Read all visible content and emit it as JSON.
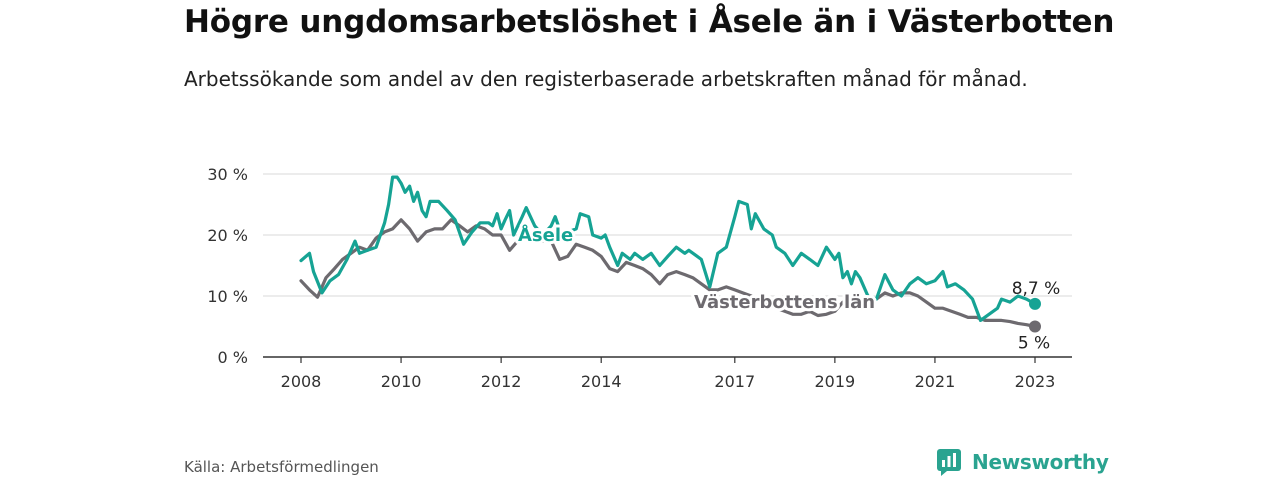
{
  "title": "Högre ungdomsarbetslöshet i Åsele än i Västerbotten",
  "subtitle": "Arbetssökande som andel av den registerbaserade arbetskraften månad för månad.",
  "source": "Källa: Arbetsförmedlingen",
  "brand": {
    "name": "Newsworthy",
    "icon": "newsworthy-logo-icon",
    "color": "#2aa390"
  },
  "chart_data": {
    "type": "line",
    "y_ticks": [
      "0 %",
      "10 %",
      "20 %",
      "30 %"
    ],
    "y_tick_values": [
      0,
      10,
      20,
      30
    ],
    "ylim": [
      0,
      30
    ],
    "x_ticks": [
      "2008",
      "2010",
      "2012",
      "2014",
      "2017",
      "2019",
      "2021",
      "2023"
    ],
    "x_tick_values": [
      2008.0,
      2010.0,
      2012.0,
      2014.0,
      2016.67,
      2018.67,
      2020.67,
      2022.67
    ],
    "grid": true,
    "series": [
      {
        "name": "Åsele",
        "color": "#16a394",
        "end_label": "8,7 %",
        "points": [
          [
            2008.0,
            15.8
          ],
          [
            2008.17,
            17.0
          ],
          [
            2008.25,
            14.0
          ],
          [
            2008.42,
            10.5
          ],
          [
            2008.58,
            12.5
          ],
          [
            2008.75,
            13.5
          ],
          [
            2008.92,
            16.0
          ],
          [
            2009.08,
            19.0
          ],
          [
            2009.17,
            17.0
          ],
          [
            2009.33,
            17.5
          ],
          [
            2009.5,
            18.0
          ],
          [
            2009.67,
            22.0
          ],
          [
            2009.75,
            25.0
          ],
          [
            2009.83,
            29.5
          ],
          [
            2009.92,
            29.5
          ],
          [
            2010.0,
            28.5
          ],
          [
            2010.08,
            27.0
          ],
          [
            2010.17,
            28.0
          ],
          [
            2010.25,
            25.5
          ],
          [
            2010.33,
            27.0
          ],
          [
            2010.42,
            24.0
          ],
          [
            2010.5,
            23.0
          ],
          [
            2010.58,
            25.5
          ],
          [
            2010.75,
            25.5
          ],
          [
            2010.92,
            24.0
          ],
          [
            2011.08,
            22.5
          ],
          [
            2011.25,
            18.5
          ],
          [
            2011.42,
            20.5
          ],
          [
            2011.58,
            22.0
          ],
          [
            2011.75,
            22.0
          ],
          [
            2011.83,
            21.5
          ],
          [
            2011.92,
            23.5
          ],
          [
            2012.0,
            21.0
          ],
          [
            2012.08,
            22.5
          ],
          [
            2012.17,
            24.0
          ],
          [
            2012.25,
            20.0
          ],
          [
            2012.42,
            23.0
          ],
          [
            2012.5,
            24.5
          ],
          [
            2012.67,
            21.5
          ],
          [
            2012.83,
            20.0
          ],
          [
            2013.0,
            21.5
          ],
          [
            2013.08,
            23.0
          ],
          [
            2013.25,
            19.0
          ],
          [
            2013.33,
            20.5
          ],
          [
            2013.5,
            21.0
          ],
          [
            2013.58,
            23.5
          ],
          [
            2013.75,
            23.0
          ],
          [
            2013.83,
            20.0
          ],
          [
            2014.0,
            19.5
          ],
          [
            2014.08,
            20.0
          ],
          [
            2014.17,
            18.0
          ],
          [
            2014.33,
            15.0
          ],
          [
            2014.42,
            17.0
          ],
          [
            2014.58,
            16.0
          ],
          [
            2014.67,
            17.0
          ],
          [
            2014.83,
            16.0
          ],
          [
            2015.0,
            17.0
          ],
          [
            2015.17,
            15.0
          ],
          [
            2015.33,
            16.5
          ],
          [
            2015.5,
            18.0
          ],
          [
            2015.67,
            17.0
          ],
          [
            2015.75,
            17.5
          ],
          [
            2015.92,
            16.5
          ],
          [
            2016.0,
            16.0
          ],
          [
            2016.17,
            11.5
          ],
          [
            2016.33,
            17.0
          ],
          [
            2016.5,
            18.0
          ],
          [
            2016.67,
            23.0
          ],
          [
            2016.75,
            25.5
          ],
          [
            2016.92,
            25.0
          ],
          [
            2017.0,
            21.0
          ],
          [
            2017.08,
            23.5
          ],
          [
            2017.25,
            21.0
          ],
          [
            2017.42,
            20.0
          ],
          [
            2017.5,
            18.0
          ],
          [
            2017.67,
            17.0
          ],
          [
            2017.83,
            15.0
          ],
          [
            2018.0,
            17.0
          ],
          [
            2018.17,
            16.0
          ],
          [
            2018.33,
            15.0
          ],
          [
            2018.5,
            18.0
          ],
          [
            2018.67,
            16.0
          ],
          [
            2018.75,
            17.0
          ],
          [
            2018.83,
            13.0
          ],
          [
            2018.92,
            14.0
          ],
          [
            2019.0,
            12.0
          ],
          [
            2019.08,
            14.0
          ],
          [
            2019.17,
            13.0
          ],
          [
            2019.33,
            10.0
          ],
          [
            2019.5,
            9.5
          ],
          [
            2019.67,
            13.5
          ],
          [
            2019.83,
            11.0
          ],
          [
            2020.0,
            10.0
          ],
          [
            2020.17,
            12.0
          ],
          [
            2020.33,
            13.0
          ],
          [
            2020.5,
            12.0
          ],
          [
            2020.67,
            12.5
          ],
          [
            2020.83,
            14.0
          ],
          [
            2020.92,
            11.5
          ],
          [
            2021.08,
            12.0
          ],
          [
            2021.25,
            11.0
          ],
          [
            2021.42,
            9.5
          ],
          [
            2021.58,
            6.0
          ],
          [
            2021.75,
            7.0
          ],
          [
            2021.92,
            8.0
          ],
          [
            2022.0,
            9.5
          ],
          [
            2022.17,
            9.0
          ],
          [
            2022.33,
            10.0
          ],
          [
            2022.5,
            9.5
          ],
          [
            2022.67,
            8.7
          ]
        ]
      },
      {
        "name": "Västerbottens län",
        "color": "#6d6a6f",
        "end_label": "5 %",
        "points": [
          [
            2008.0,
            12.5
          ],
          [
            2008.17,
            11.0
          ],
          [
            2008.33,
            9.8
          ],
          [
            2008.5,
            13.0
          ],
          [
            2008.67,
            14.5
          ],
          [
            2008.83,
            16.0
          ],
          [
            2009.0,
            17.0
          ],
          [
            2009.17,
            18.0
          ],
          [
            2009.33,
            17.5
          ],
          [
            2009.5,
            19.5
          ],
          [
            2009.67,
            20.5
          ],
          [
            2009.83,
            21.0
          ],
          [
            2010.0,
            22.5
          ],
          [
            2010.17,
            21.0
          ],
          [
            2010.33,
            19.0
          ],
          [
            2010.5,
            20.5
          ],
          [
            2010.67,
            21.0
          ],
          [
            2010.83,
            21.0
          ],
          [
            2011.0,
            22.5
          ],
          [
            2011.17,
            21.5
          ],
          [
            2011.33,
            20.5
          ],
          [
            2011.5,
            21.5
          ],
          [
            2011.67,
            21.0
          ],
          [
            2011.83,
            20.0
          ],
          [
            2012.0,
            20.0
          ],
          [
            2012.17,
            17.5
          ],
          [
            2012.33,
            19.0
          ],
          [
            2012.5,
            19.5
          ],
          [
            2012.67,
            19.0
          ],
          [
            2012.83,
            19.0
          ],
          [
            2013.0,
            19.0
          ],
          [
            2013.17,
            16.0
          ],
          [
            2013.33,
            16.5
          ],
          [
            2013.5,
            18.5
          ],
          [
            2013.67,
            18.0
          ],
          [
            2013.83,
            17.5
          ],
          [
            2014.0,
            16.5
          ],
          [
            2014.17,
            14.5
          ],
          [
            2014.33,
            14.0
          ],
          [
            2014.5,
            15.5
          ],
          [
            2014.67,
            15.0
          ],
          [
            2014.83,
            14.5
          ],
          [
            2015.0,
            13.5
          ],
          [
            2015.17,
            12.0
          ],
          [
            2015.33,
            13.5
          ],
          [
            2015.5,
            14.0
          ],
          [
            2015.67,
            13.5
          ],
          [
            2015.83,
            13.0
          ],
          [
            2016.0,
            12.0
          ],
          [
            2016.17,
            11.0
          ],
          [
            2016.33,
            11.0
          ],
          [
            2016.5,
            11.5
          ],
          [
            2016.67,
            11.0
          ],
          [
            2016.83,
            10.5
          ],
          [
            2017.0,
            10.0
          ],
          [
            2017.17,
            9.0
          ],
          [
            2017.33,
            8.5
          ],
          [
            2017.5,
            8.0
          ],
          [
            2017.67,
            7.5
          ],
          [
            2017.83,
            7.0
          ],
          [
            2018.0,
            7.0
          ],
          [
            2018.17,
            7.5
          ],
          [
            2018.33,
            6.8
          ],
          [
            2018.5,
            7.0
          ],
          [
            2018.67,
            7.5
          ],
          [
            2018.83,
            9.0
          ],
          [
            2019.0,
            9.0
          ],
          [
            2019.17,
            8.5
          ],
          [
            2019.33,
            9.0
          ],
          [
            2019.5,
            9.5
          ],
          [
            2019.67,
            10.5
          ],
          [
            2019.83,
            10.0
          ],
          [
            2020.0,
            10.5
          ],
          [
            2020.17,
            10.5
          ],
          [
            2020.33,
            10.0
          ],
          [
            2020.5,
            9.0
          ],
          [
            2020.67,
            8.0
          ],
          [
            2020.83,
            8.0
          ],
          [
            2021.0,
            7.5
          ],
          [
            2021.17,
            7.0
          ],
          [
            2021.33,
            6.5
          ],
          [
            2021.5,
            6.5
          ],
          [
            2021.67,
            6.0
          ],
          [
            2021.83,
            6.0
          ],
          [
            2022.0,
            6.0
          ],
          [
            2022.17,
            5.8
          ],
          [
            2022.33,
            5.5
          ],
          [
            2022.5,
            5.3
          ],
          [
            2022.67,
            5.0
          ]
        ]
      }
    ]
  }
}
